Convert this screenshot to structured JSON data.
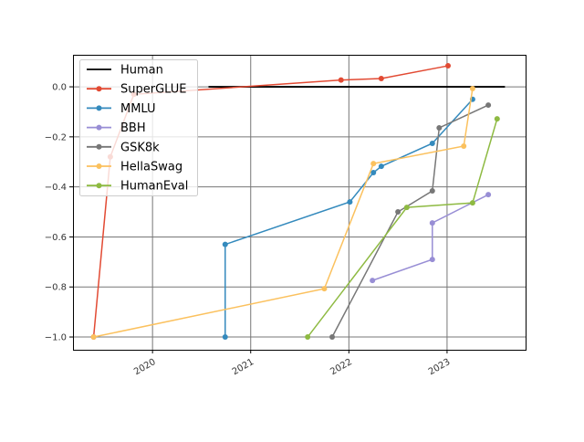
{
  "chart_data": {
    "type": "line",
    "title": "",
    "xlabel": "",
    "ylabel": "",
    "xlim": [
      2019.19,
      2023.8
    ],
    "ylim": [
      -1.051,
      0.128
    ],
    "grid": true,
    "legend_position": "top-left",
    "x_ticks": [
      {
        "value": 2020,
        "label": "2020"
      },
      {
        "value": 2021,
        "label": "2021"
      },
      {
        "value": 2022,
        "label": "2022"
      },
      {
        "value": 2023,
        "label": "2023"
      }
    ],
    "y_ticks": [
      {
        "value": 0.0,
        "label": "0.0"
      },
      {
        "value": -0.2,
        "label": "−0.2"
      },
      {
        "value": -0.4,
        "label": "−0.4"
      },
      {
        "value": -0.6,
        "label": "−0.6"
      },
      {
        "value": -0.8,
        "label": "−0.8"
      },
      {
        "value": -1.0,
        "label": "−1.0"
      }
    ],
    "series": [
      {
        "name": "Human",
        "color": "#000000",
        "markers": false,
        "x": [
          2020.57,
          2023.59
        ],
        "y": [
          0,
          0
        ]
      },
      {
        "name": "SuperGLUE",
        "color": "#E24A33",
        "markers": true,
        "x": [
          2019.4,
          2019.57,
          2019.81,
          2021.92,
          2022.33,
          2023.01
        ],
        "y": [
          -1.0,
          -0.28,
          -0.03,
          0.027,
          0.033,
          0.084
        ]
      },
      {
        "name": "MMLU",
        "color": "#348ABD",
        "markers": true,
        "x": [
          2020.74,
          2020.74,
          2022.01,
          2022.25,
          2022.33,
          2022.85,
          2023.26
        ],
        "y": [
          -1.0,
          -0.63,
          -0.46,
          -0.343,
          -0.318,
          -0.226,
          -0.05
        ]
      },
      {
        "name": "BBH",
        "color": "#988ED5",
        "markers": true,
        "x": [
          2022.24,
          2022.85,
          2022.85,
          2023.42
        ],
        "y": [
          -0.774,
          -0.69,
          -0.544,
          -0.431
        ]
      },
      {
        "name": "GSK8k",
        "color": "#777777",
        "markers": true,
        "x": [
          2021.83,
          2022.5,
          2022.85,
          2022.92,
          2023.42
        ],
        "y": [
          -1.0,
          -0.5,
          -0.416,
          -0.164,
          -0.073
        ]
      },
      {
        "name": "HellaSwag",
        "color": "#FBC15E",
        "markers": true,
        "x": [
          2019.4,
          2021.75,
          2022.25,
          2023.17,
          2023.26
        ],
        "y": [
          -1.0,
          -0.807,
          -0.307,
          -0.237,
          -0.007
        ]
      },
      {
        "name": "HumanEval",
        "color": "#8EBA42",
        "markers": true,
        "x": [
          2021.58,
          2022.59,
          2023.26,
          2023.51
        ],
        "y": [
          -1.0,
          -0.482,
          -0.464,
          -0.128
        ]
      }
    ]
  }
}
